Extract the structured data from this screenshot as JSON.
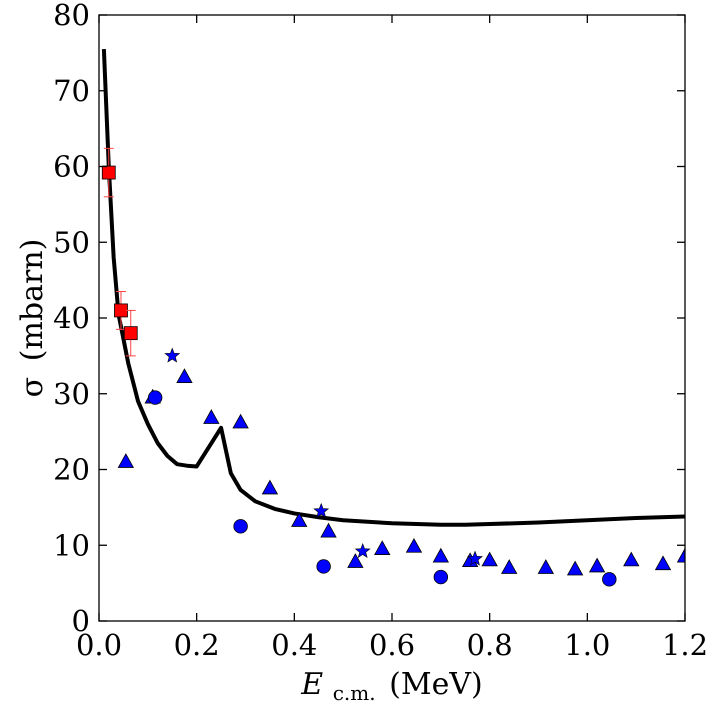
{
  "chart_data": {
    "type": "scatter",
    "title": "",
    "xlabel_main": "E",
    "xlabel_sub": "c.m.",
    "xlabel_unit": "(MeV)",
    "ylabel_symbol": "σ",
    "ylabel_unit": "(mbarn)",
    "xlim": [
      0.0,
      1.2
    ],
    "ylim": [
      0,
      80
    ],
    "xticks": [
      0.0,
      0.2,
      0.4,
      0.6,
      0.8,
      1.0,
      1.2
    ],
    "xtick_labels": [
      "0.0",
      "0.2",
      "0.4",
      "0.6",
      "0.8",
      "1.0",
      "1.2"
    ],
    "yticks": [
      0,
      10,
      20,
      30,
      40,
      50,
      60,
      70,
      80
    ],
    "ytick_labels": [
      "0",
      "10",
      "20",
      "30",
      "40",
      "50",
      "60",
      "70",
      "80"
    ],
    "grid": false,
    "series": [
      {
        "name": "theory curve",
        "kind": "line",
        "color": "#000000",
        "x": [
          0.01,
          0.02,
          0.03,
          0.04,
          0.06,
          0.08,
          0.1,
          0.12,
          0.14,
          0.16,
          0.18,
          0.2,
          0.25,
          0.27,
          0.29,
          0.32,
          0.36,
          0.4,
          0.45,
          0.5,
          0.6,
          0.7,
          0.75,
          0.8,
          0.9,
          1.0,
          1.1,
          1.2
        ],
        "y": [
          75.5,
          60.0,
          48.0,
          40.5,
          34.0,
          29.0,
          26.0,
          23.5,
          21.8,
          20.7,
          20.5,
          20.4,
          25.5,
          19.5,
          17.3,
          15.8,
          14.8,
          14.2,
          13.7,
          13.3,
          12.9,
          12.7,
          12.7,
          12.8,
          13.0,
          13.3,
          13.6,
          13.8
        ]
      },
      {
        "name": "squares with error bars",
        "kind": "square",
        "color": "#ff0000",
        "error_color": "#ff4444",
        "x": [
          0.02,
          0.045,
          0.065
        ],
        "y": [
          59.2,
          41.0,
          38.0
        ],
        "yerr": [
          3.2,
          2.5,
          3.0
        ]
      },
      {
        "name": "triangles",
        "kind": "triangle",
        "color": "#0000ff",
        "x": [
          0.055,
          0.11,
          0.175,
          0.23,
          0.29,
          0.35,
          0.41,
          0.47,
          0.525,
          0.58,
          0.645,
          0.7,
          0.76,
          0.8,
          0.84,
          0.915,
          0.975,
          1.02,
          1.09,
          1.155,
          1.2
        ],
        "y": [
          21.0,
          29.5,
          32.2,
          26.8,
          26.2,
          17.5,
          13.2,
          11.8,
          7.8,
          9.5,
          9.8,
          8.5,
          7.9,
          8.0,
          7.0,
          7.0,
          6.8,
          7.2,
          8.0,
          7.5,
          8.5
        ]
      },
      {
        "name": "circles",
        "kind": "circle",
        "color": "#0000ff",
        "x": [
          0.115,
          0.29,
          0.46,
          0.7,
          1.045
        ],
        "y": [
          29.5,
          12.5,
          7.2,
          5.8,
          5.5
        ]
      },
      {
        "name": "stars",
        "kind": "star",
        "color": "#0000ff",
        "x": [
          0.15,
          0.455,
          0.54,
          0.77
        ],
        "y": [
          35.0,
          14.5,
          9.2,
          8.2
        ]
      }
    ]
  }
}
